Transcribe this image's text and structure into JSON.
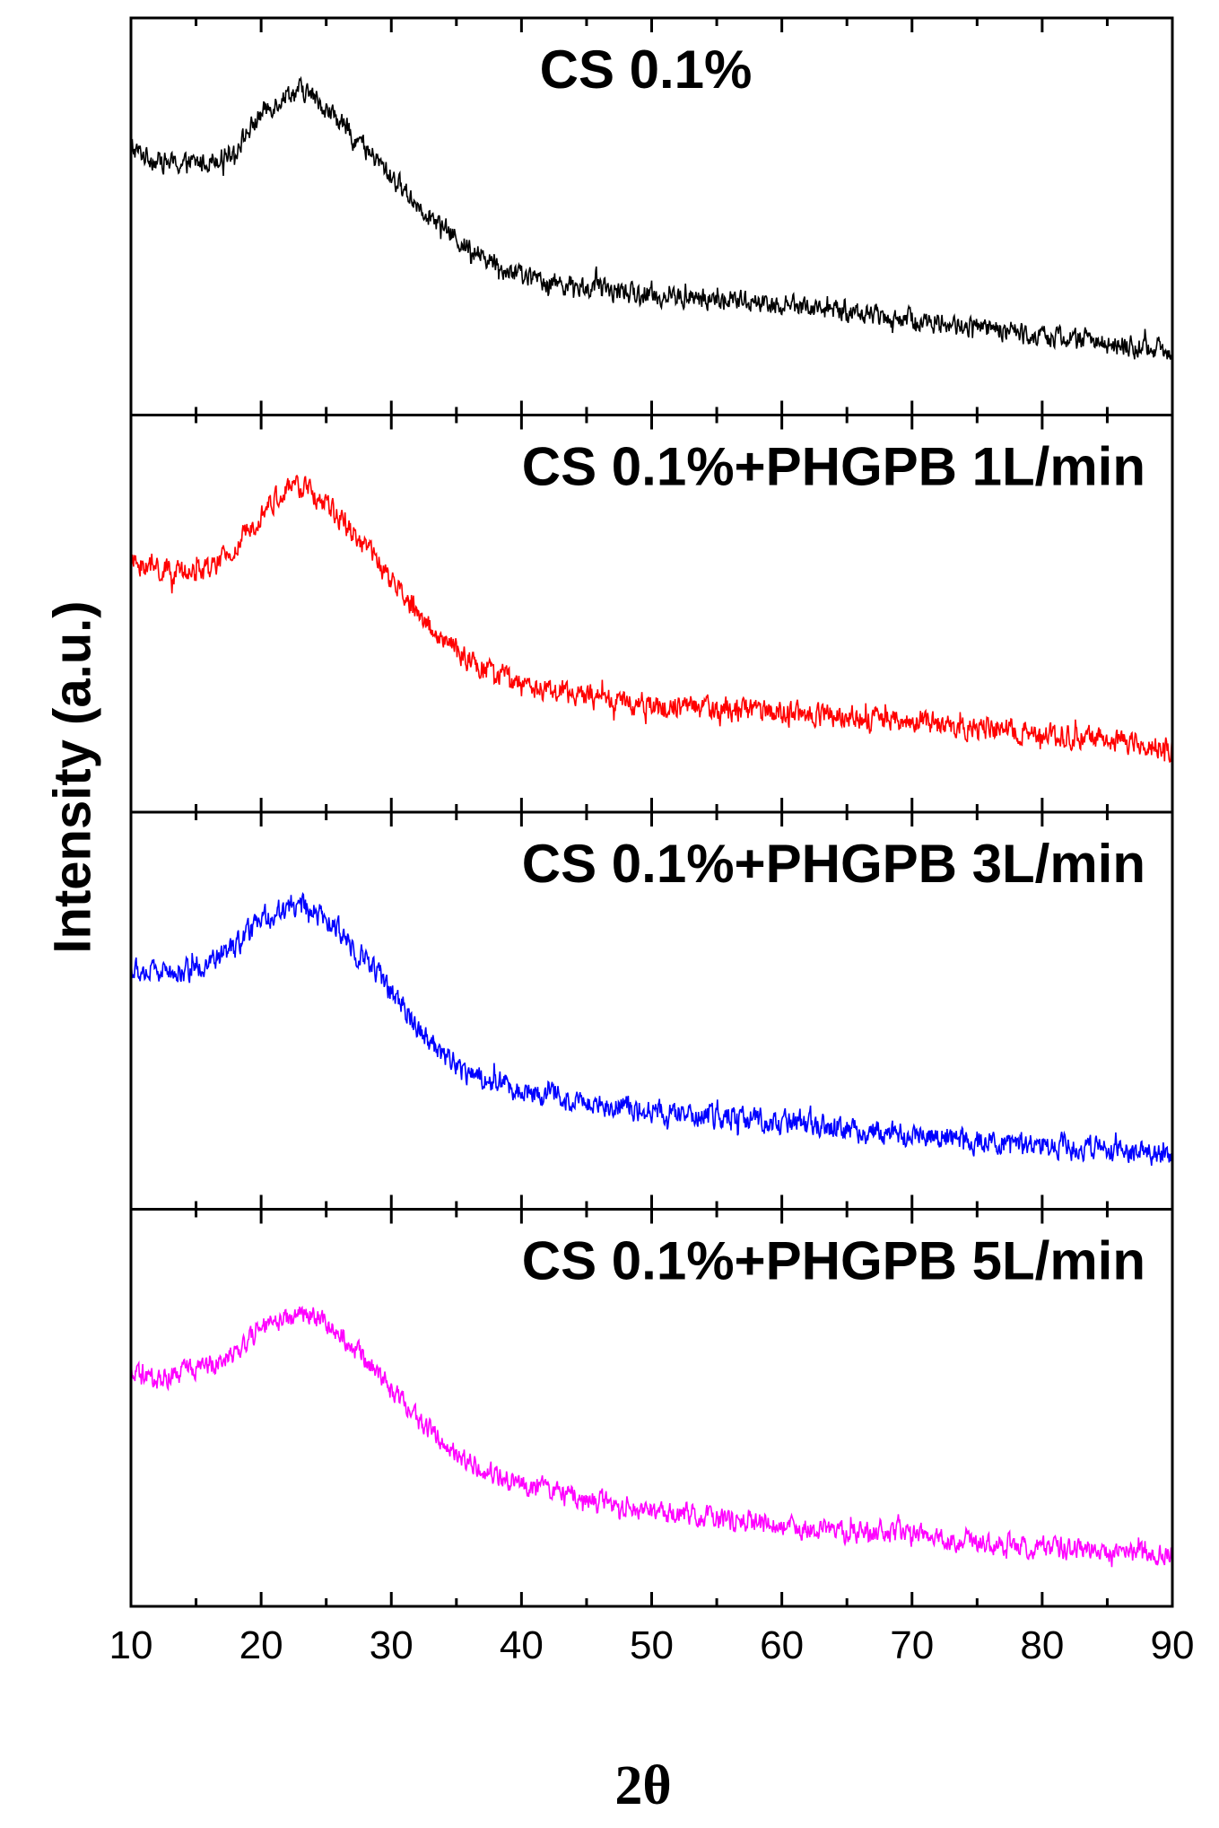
{
  "chart_data": {
    "type": "line",
    "layout": "stacked-panels",
    "xlabel": "2θ",
    "ylabel": "Intensity (a.u.)",
    "xlim": [
      10,
      90
    ],
    "xticks": [
      10,
      20,
      30,
      40,
      50,
      60,
      70,
      80,
      90
    ],
    "ylim": [
      0,
      1
    ],
    "series": [
      {
        "name": "CS 0.1%",
        "color": "#000000",
        "x": [
          10,
          12,
          14,
          16,
          18,
          20,
          22,
          23,
          24,
          26,
          28,
          30,
          32,
          34,
          36,
          38,
          40,
          45,
          50,
          55,
          60,
          65,
          70,
          75,
          80,
          85,
          90
        ],
        "values": [
          0.67,
          0.64,
          0.63,
          0.64,
          0.67,
          0.76,
          0.81,
          0.82,
          0.8,
          0.74,
          0.67,
          0.6,
          0.53,
          0.47,
          0.42,
          0.38,
          0.35,
          0.32,
          0.3,
          0.29,
          0.28,
          0.26,
          0.24,
          0.22,
          0.2,
          0.18,
          0.16
        ],
        "noise": 0.04
      },
      {
        "name": "CS 0.1%+PHGPB 1L/min",
        "color": "#ff0000",
        "x": [
          10,
          12,
          14,
          16,
          18,
          20,
          22,
          23,
          24,
          26,
          28,
          30,
          32,
          34,
          36,
          38,
          40,
          45,
          50,
          55,
          60,
          65,
          70,
          75,
          80,
          85,
          90
        ],
        "values": [
          0.63,
          0.61,
          0.6,
          0.61,
          0.66,
          0.76,
          0.81,
          0.82,
          0.8,
          0.74,
          0.67,
          0.58,
          0.5,
          0.43,
          0.38,
          0.35,
          0.32,
          0.29,
          0.27,
          0.26,
          0.25,
          0.24,
          0.23,
          0.21,
          0.2,
          0.18,
          0.16
        ],
        "noise": 0.045
      },
      {
        "name": "CS 0.1%+PHGPB 3L/min",
        "color": "#0000ff",
        "x": [
          10,
          12,
          14,
          16,
          18,
          20,
          22,
          23,
          24,
          26,
          28,
          30,
          32,
          34,
          36,
          38,
          40,
          45,
          50,
          55,
          60,
          65,
          70,
          75,
          80,
          85,
          90
        ],
        "values": [
          0.6,
          0.6,
          0.6,
          0.62,
          0.66,
          0.73,
          0.76,
          0.76,
          0.75,
          0.7,
          0.63,
          0.55,
          0.46,
          0.39,
          0.34,
          0.32,
          0.3,
          0.27,
          0.25,
          0.23,
          0.22,
          0.2,
          0.19,
          0.17,
          0.16,
          0.15,
          0.14
        ],
        "noise": 0.045
      },
      {
        "name": "CS 0.1%+PHGPB 5L/min",
        "color": "#ff00ff",
        "x": [
          10,
          12,
          14,
          16,
          18,
          20,
          22,
          23,
          24,
          26,
          28,
          30,
          32,
          34,
          36,
          38,
          40,
          45,
          50,
          55,
          60,
          65,
          70,
          75,
          80,
          85,
          90
        ],
        "values": [
          0.58,
          0.57,
          0.59,
          0.61,
          0.64,
          0.7,
          0.73,
          0.74,
          0.73,
          0.69,
          0.62,
          0.55,
          0.47,
          0.41,
          0.36,
          0.33,
          0.31,
          0.27,
          0.24,
          0.22,
          0.2,
          0.19,
          0.18,
          0.16,
          0.15,
          0.14,
          0.13
        ],
        "noise": 0.04
      }
    ]
  }
}
